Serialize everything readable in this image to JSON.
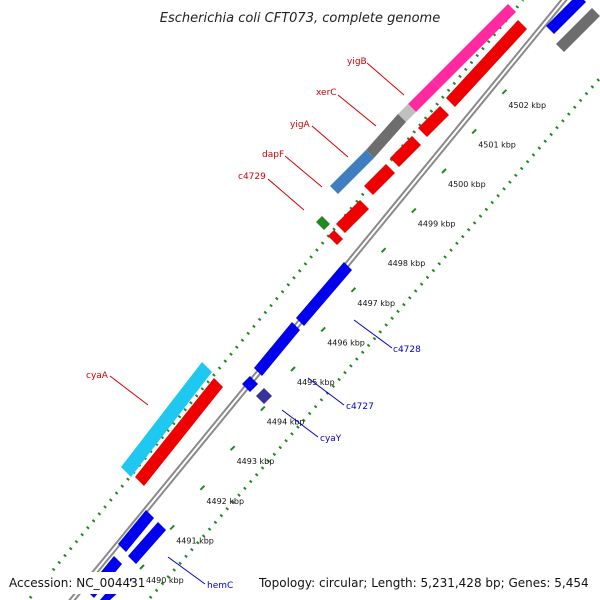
{
  "title": "Escherichia coli CFT073, complete genome",
  "footer": {
    "accession": "Accession: NC_004431",
    "summary": "Topology: circular; Length: 5,231,428 bp; Genes: 5,454"
  },
  "scale_unit": "kbp",
  "ticks": [
    4490,
    4491,
    4492,
    4493,
    4494,
    4495,
    4496,
    4497,
    4498,
    4499,
    4500,
    4501,
    4502
  ],
  "colors": {
    "backbone": "#8a8a8a",
    "dots": "#1f8a1f",
    "label_forward": "#d40000",
    "label_reverse": "#0000cc"
  },
  "genes_forward": [
    {
      "name": "yigB",
      "color": "#ff2aa0"
    },
    {
      "name": "xerC",
      "color": "#ff2aa0"
    },
    {
      "name": "yigA",
      "color": "#c0c0c0"
    },
    {
      "name": "dapF",
      "color": "#6d6d6d"
    },
    {
      "name": "c4729",
      "color": "#3f7fbf"
    },
    {
      "name": "cyaA",
      "color": "#1ec8f0"
    }
  ],
  "genes_reverse": [
    {
      "name": "c4728",
      "color": "#0000ee"
    },
    {
      "name": "c4727",
      "color": "#0000ee"
    },
    {
      "name": "cyaY",
      "color": "#333399"
    },
    {
      "name": "hemC",
      "color": "#0000ee"
    }
  ]
}
